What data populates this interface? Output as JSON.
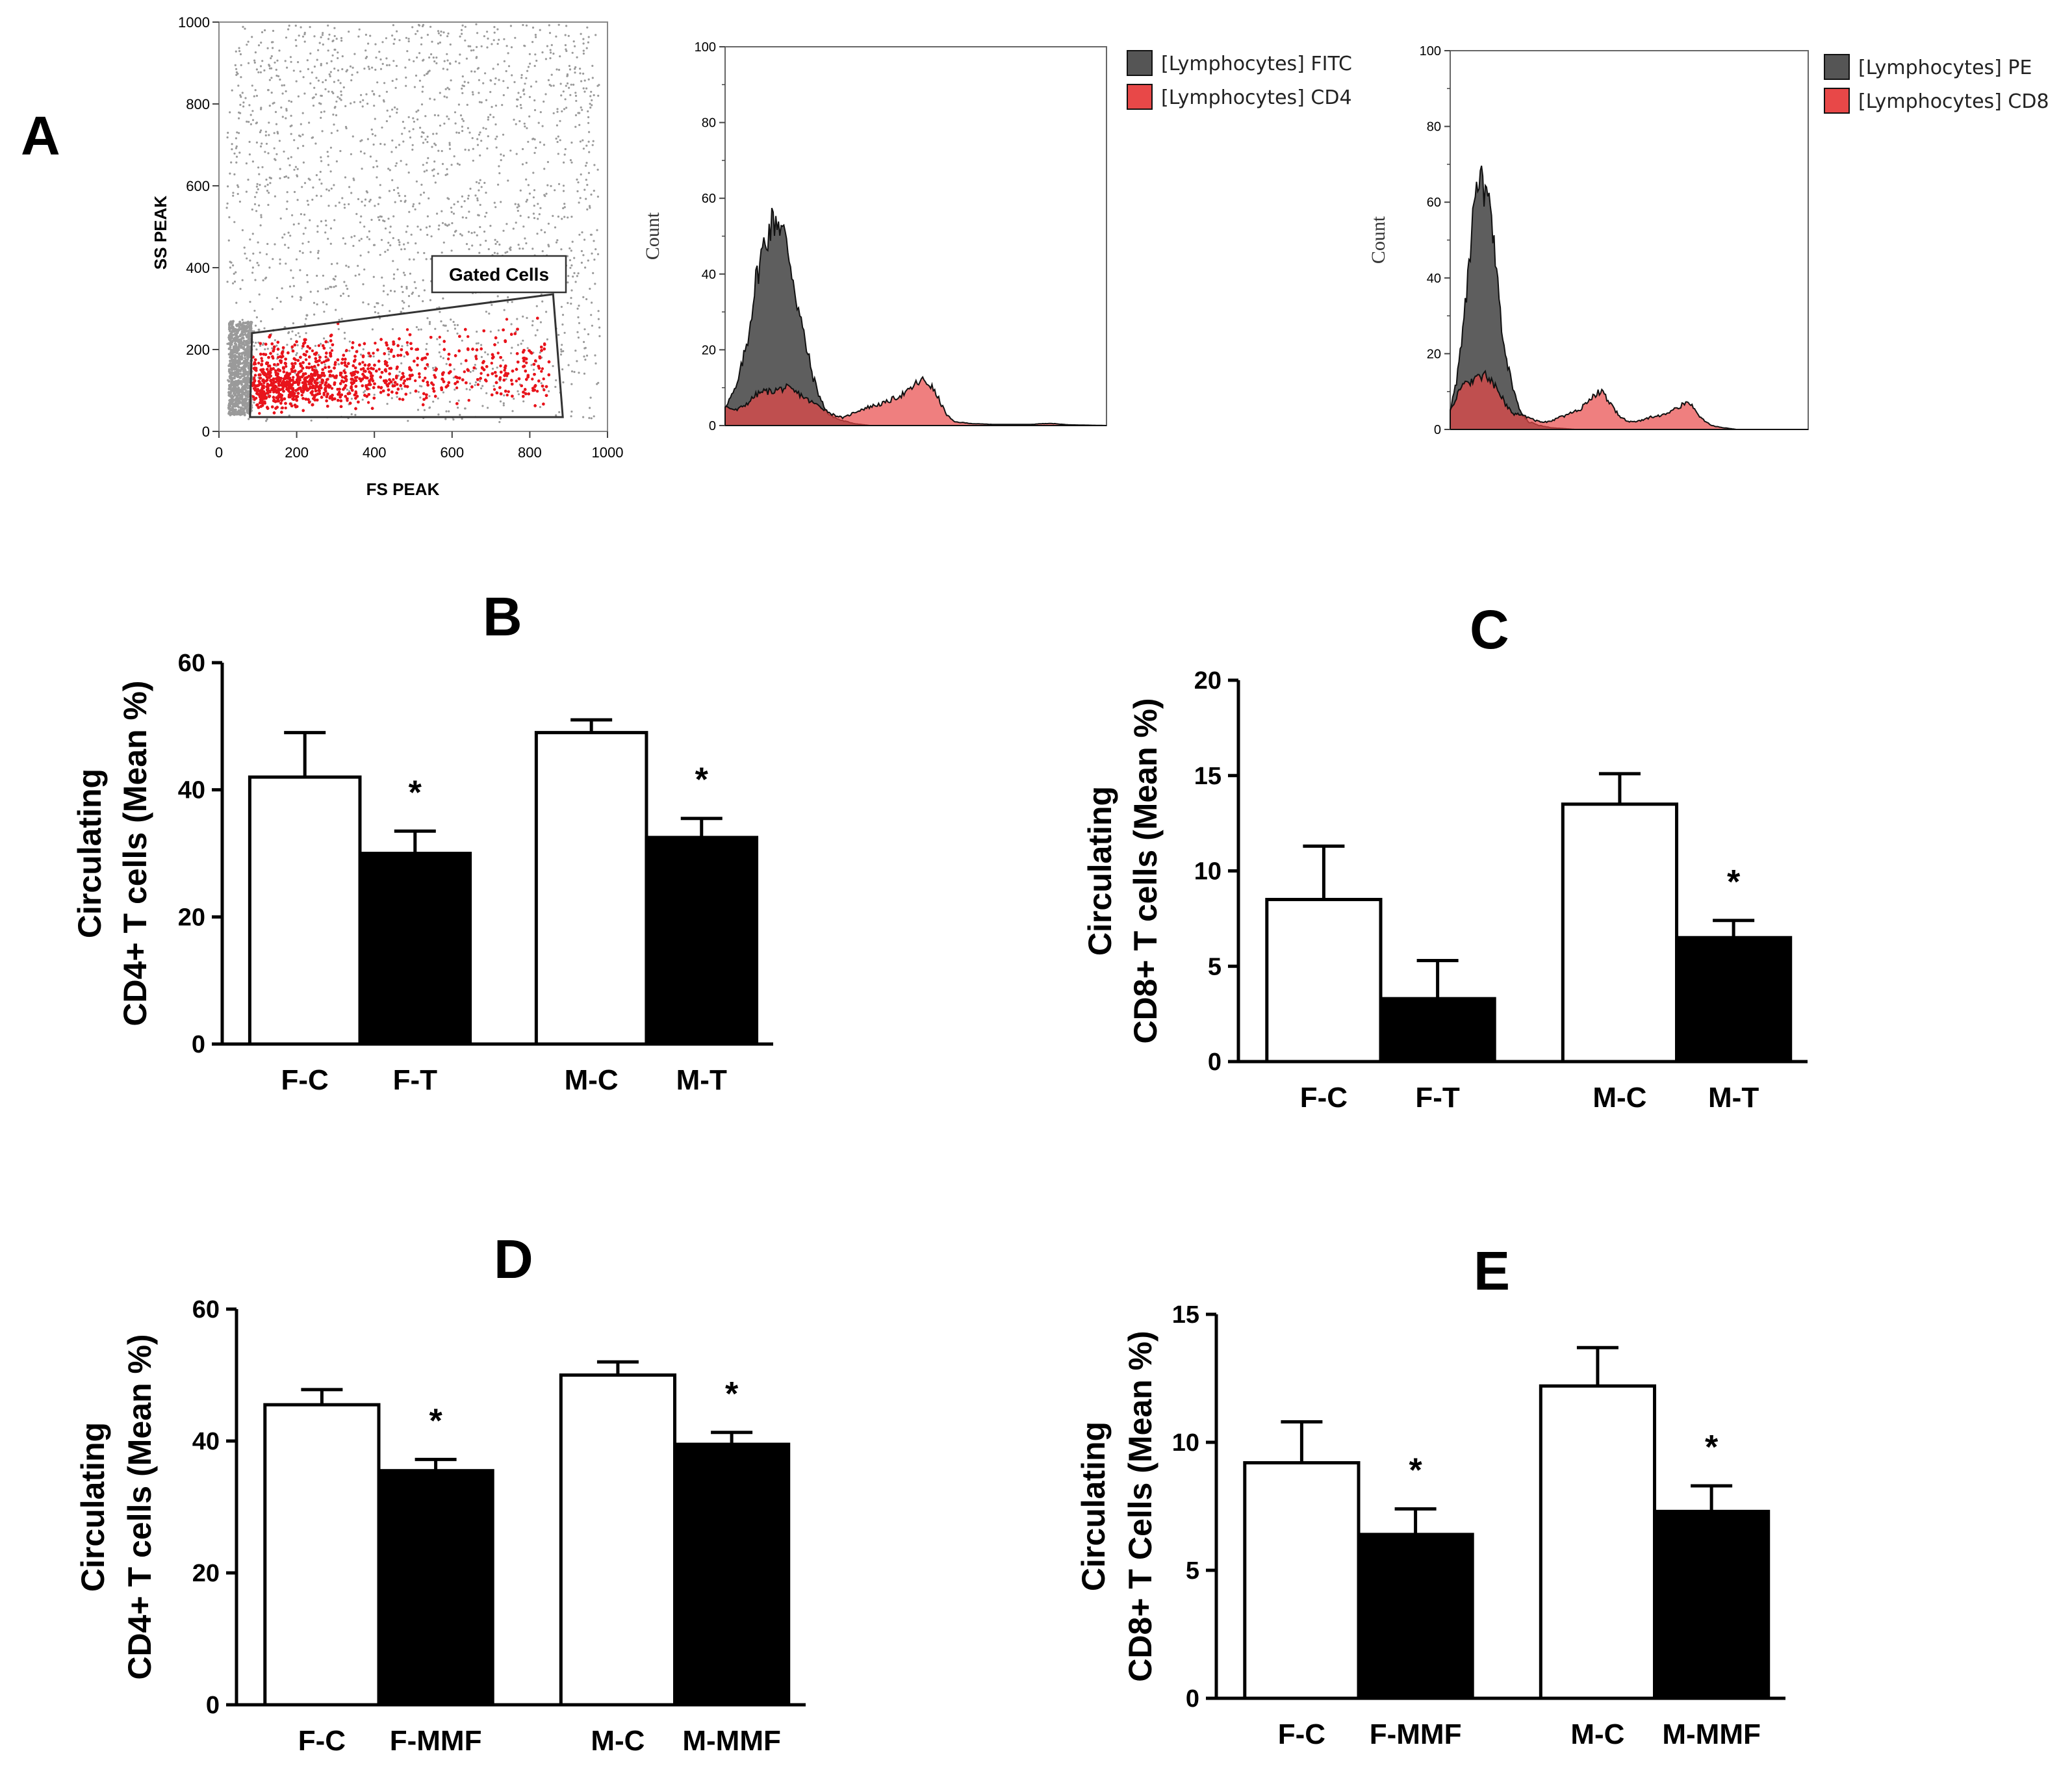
{
  "panels": {
    "A": "A",
    "B": "B",
    "C": "C",
    "D": "D",
    "E": "E"
  },
  "scatter": {
    "xlabel": "FS PEAK",
    "ylabel": "SS PEAK",
    "xlim": [
      0,
      1000
    ],
    "ylim": [
      0,
      1000
    ],
    "xticks": [
      0,
      200,
      400,
      600,
      800,
      1000
    ],
    "yticks": [
      0,
      200,
      400,
      600,
      800,
      1000
    ],
    "gate_label": "Gated Cells",
    "gate_polygon": [
      [
        85,
        240
      ],
      [
        860,
        335
      ],
      [
        885,
        35
      ],
      [
        80,
        35
      ]
    ],
    "colors": {
      "ungated": "#9a9a9a",
      "gated": "#e8141c"
    }
  },
  "chart_data": [
    {
      "type": "area",
      "name": "histogram-cd4",
      "ylabel": "Count",
      "ylim": [
        0,
        100
      ],
      "yticks": [
        0,
        20,
        40,
        60,
        80,
        100
      ],
      "legend": [
        "[Lymphocytes] FITC",
        "[Lymphocytes] CD4"
      ],
      "series": [
        {
          "name": "[Lymphocytes] FITC",
          "color": "#555555",
          "x": [
            0,
            3,
            6,
            8,
            10,
            12,
            13.5,
            15,
            17,
            19,
            21,
            23,
            25,
            27,
            30,
            34,
            38,
            45,
            55,
            65,
            75,
            85,
            100
          ],
          "y": [
            5,
            10,
            23,
            38,
            47,
            53,
            55,
            52,
            44,
            32,
            22,
            13,
            7,
            3,
            1.5,
            0.5,
            0,
            0,
            0,
            0,
            0,
            0,
            0
          ]
        },
        {
          "name": "[Lymphocytes] CD4",
          "color": "#e84848",
          "x": [
            0,
            3,
            6,
            8,
            10,
            12,
            14,
            16,
            18,
            20,
            22,
            25,
            28,
            31,
            35,
            38,
            42,
            45,
            48,
            50,
            52,
            54,
            56,
            58,
            60,
            65,
            70,
            80,
            85,
            90,
            100
          ],
          "y": [
            5,
            4,
            6,
            8,
            9,
            9,
            9.5,
            10,
            9,
            8,
            6.5,
            5,
            3,
            2,
            4,
            5,
            6,
            7.5,
            9,
            11,
            12,
            10.5,
            7,
            3,
            1,
            0.5,
            0.3,
            0.3,
            0.6,
            0.2,
            0
          ]
        }
      ]
    },
    {
      "type": "area",
      "name": "histogram-cd8",
      "ylabel": "Count",
      "ylim": [
        0,
        100
      ],
      "yticks": [
        0,
        20,
        40,
        60,
        80,
        100
      ],
      "legend": [
        "[Lymphocytes] PE",
        "[Lymphocytes] CD8"
      ],
      "series": [
        {
          "name": "[Lymphocytes] PE",
          "color": "#555555",
          "x": [
            0,
            2,
            4,
            6,
            7.5,
            8.5,
            9.5,
            11,
            12,
            13,
            14,
            16,
            18,
            20,
            22,
            25,
            28,
            35,
            45,
            60,
            100
          ],
          "y": [
            5,
            14,
            30,
            52,
            62,
            65,
            63,
            58,
            50,
            40,
            30,
            17,
            9,
            4,
            2,
            1,
            0.5,
            0,
            0,
            0,
            0
          ]
        },
        {
          "name": "[Lymphocytes] CD8",
          "color": "#e84848",
          "x": [
            0,
            2,
            4,
            6,
            8,
            10,
            12,
            14,
            16,
            18,
            20,
            22,
            25,
            28,
            30,
            33,
            36,
            38,
            40,
            42,
            44,
            46,
            48,
            50,
            52,
            55,
            60,
            62,
            64,
            66,
            68,
            70,
            73,
            76,
            80,
            100
          ],
          "y": [
            5,
            9,
            12,
            13,
            14,
            14,
            12,
            9,
            6,
            4,
            4,
            3,
            2,
            2,
            3,
            4,
            5,
            7,
            9,
            10,
            8,
            5,
            3,
            2,
            2,
            3,
            4,
            5,
            6,
            7,
            6,
            3,
            1,
            0.5,
            0,
            0
          ]
        }
      ]
    },
    {
      "type": "bar",
      "name": "bar-chart-b",
      "panel": "B",
      "ylabel_lines": [
        "Circulating",
        "CD4+ T cells (Mean %)"
      ],
      "ylim": [
        0,
        60
      ],
      "yticks": [
        0,
        20,
        40,
        60
      ],
      "categories": [
        "F-C",
        "F-T",
        "M-C",
        "M-T"
      ],
      "values": [
        42,
        30,
        49,
        32.5
      ],
      "errors": [
        7,
        3.5,
        2,
        3
      ],
      "fills": [
        "white",
        "black",
        "white",
        "black"
      ],
      "significance": [
        "",
        "*",
        "",
        "*"
      ]
    },
    {
      "type": "bar",
      "name": "bar-chart-c",
      "panel": "C",
      "ylabel_lines": [
        "Circulating",
        "CD8+ T cells (Mean %)"
      ],
      "ylim": [
        0,
        20
      ],
      "yticks": [
        0,
        5,
        10,
        15,
        20
      ],
      "categories": [
        "F-C",
        "F-T",
        "M-C",
        "M-T"
      ],
      "values": [
        8.5,
        3.3,
        13.5,
        6.5
      ],
      "errors": [
        2.8,
        2,
        1.6,
        0.9
      ],
      "fills": [
        "white",
        "black",
        "white",
        "black"
      ],
      "significance": [
        "",
        "",
        "",
        "*"
      ]
    },
    {
      "type": "bar",
      "name": "bar-chart-d",
      "panel": "D",
      "ylabel_lines": [
        "Circulating",
        "CD4+ T cells (Mean %)"
      ],
      "ylim": [
        0,
        60
      ],
      "yticks": [
        0,
        20,
        40,
        60
      ],
      "categories": [
        "F-C",
        "F-MMF",
        "M-C",
        "M-MMF"
      ],
      "values": [
        45.5,
        35.5,
        50,
        39.5
      ],
      "errors": [
        2.3,
        1.7,
        2,
        1.8
      ],
      "fills": [
        "white",
        "black",
        "white",
        "black"
      ],
      "significance": [
        "",
        "*",
        "",
        "*"
      ]
    },
    {
      "type": "bar",
      "name": "bar-chart-e",
      "panel": "E",
      "ylabel_lines": [
        "Circulating",
        "CD8+ T Cells (Mean %)"
      ],
      "ylim": [
        0,
        15
      ],
      "yticks": [
        0,
        5,
        10,
        15
      ],
      "categories": [
        "F-C",
        "F-MMF",
        "M-C",
        "M-MMF"
      ],
      "values": [
        9.2,
        6.4,
        12.2,
        7.3
      ],
      "errors": [
        1.6,
        1,
        1.5,
        1
      ],
      "fills": [
        "white",
        "black",
        "white",
        "black"
      ],
      "significance": [
        "",
        "*",
        "",
        "*"
      ]
    }
  ]
}
